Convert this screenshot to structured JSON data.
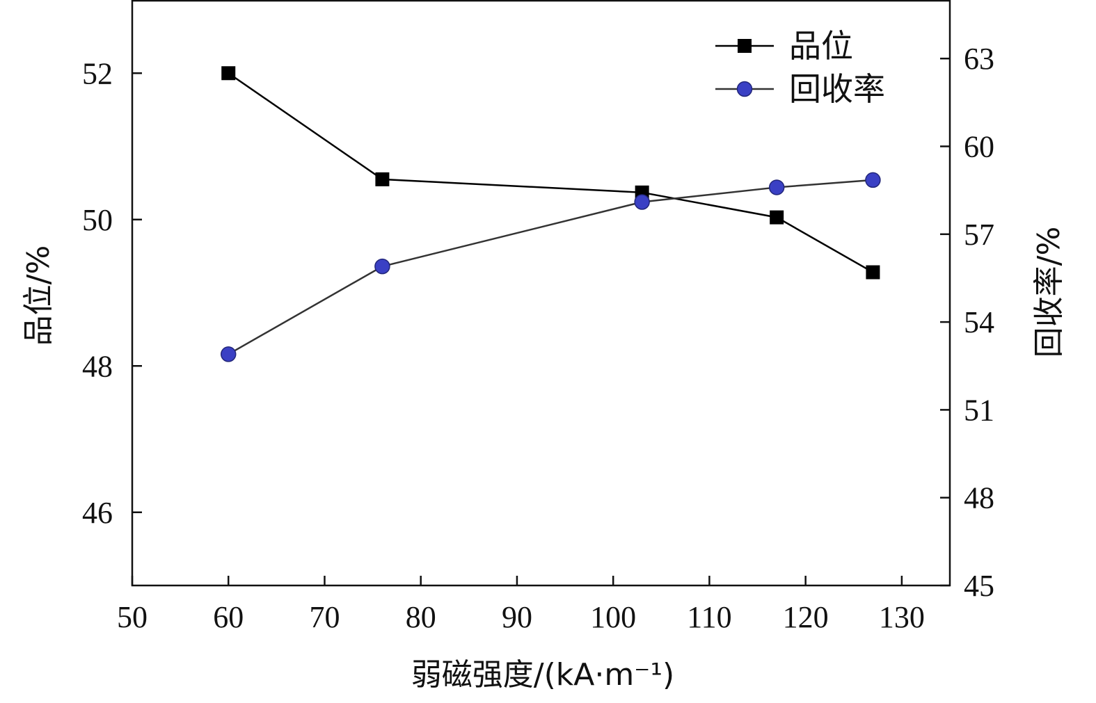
{
  "chart_data": {
    "type": "line",
    "xlabel": "弱磁强度/(kA·m⁻¹)",
    "ylabel_left": "品位/%",
    "ylabel_right": "回收率/%",
    "xlim": [
      50,
      135
    ],
    "xticks": [
      50,
      60,
      70,
      80,
      90,
      100,
      110,
      120,
      130
    ],
    "ylim_left": [
      45,
      53
    ],
    "yticks_left": [
      46,
      48,
      50,
      52
    ],
    "ylim_right": [
      45,
      65
    ],
    "yticks_right": [
      45,
      48,
      51,
      54,
      57,
      60,
      63
    ],
    "grid": false,
    "legend_position": "top-right",
    "series": [
      {
        "name": "品位",
        "axis": "left",
        "marker": "square",
        "color": "#000000",
        "x": [
          60,
          76,
          103,
          117,
          127
        ],
        "y": [
          52.0,
          50.55,
          50.37,
          50.03,
          49.28
        ]
      },
      {
        "name": "回收率",
        "axis": "right",
        "marker": "circle",
        "color": "#3a40c4",
        "x": [
          60,
          76,
          103,
          117,
          127
        ],
        "y": [
          52.9,
          55.9,
          58.1,
          58.6,
          58.85
        ]
      }
    ]
  }
}
